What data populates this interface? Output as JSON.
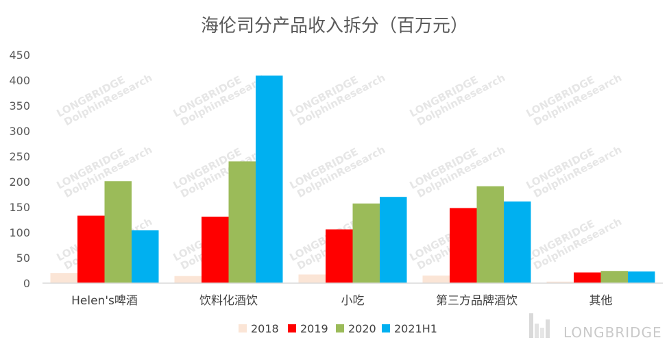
{
  "chart_data": {
    "type": "bar",
    "title": "海伦司分产品收入拆分（百万元）",
    "categories": [
      "Helen's啤酒",
      "饮料化酒饮",
      "小吃",
      "第三方品牌酒饮",
      "其他"
    ],
    "series": [
      {
        "name": "2018",
        "color": "#fbe5d6",
        "values": [
          20,
          14,
          17,
          15,
          3
        ]
      },
      {
        "name": "2019",
        "color": "#ff0000",
        "values": [
          133,
          131,
          106,
          148,
          21
        ]
      },
      {
        "name": "2020",
        "color": "#9bbb59",
        "values": [
          201,
          240,
          157,
          191,
          24
        ]
      },
      {
        "name": "2021H1",
        "color": "#00b0f0",
        "values": [
          104,
          409,
          170,
          161,
          23
        ]
      }
    ],
    "ylim": [
      0,
      450
    ],
    "yticks": [
      0,
      50,
      100,
      150,
      200,
      250,
      300,
      350,
      400,
      450
    ],
    "xlabel": "",
    "ylabel": "",
    "legend_position": "bottom"
  },
  "watermark": {
    "text": "DolphinResearch",
    "small_text": "LONGBRIDGE"
  },
  "brand_logo": {
    "text": "LONGBRIDGE"
  }
}
